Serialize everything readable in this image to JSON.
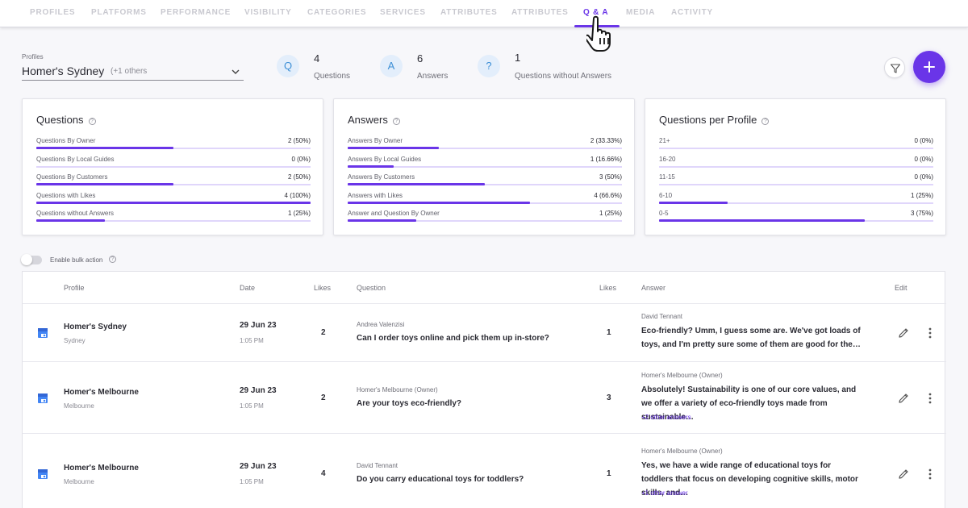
{
  "nav": {
    "tabs": [
      {
        "label": "PROFILES"
      },
      {
        "label": "PLATFORMS"
      },
      {
        "label": "PERFORMANCE"
      },
      {
        "label": "VISIBILITY"
      },
      {
        "label": "CATEGORIES"
      },
      {
        "label": "SERVICES"
      },
      {
        "label": "ATTRIBUTES"
      },
      {
        "label": "ATTRIBUTES"
      },
      {
        "label": "Q & A"
      },
      {
        "label": "MEDIA"
      },
      {
        "label": "ACTIVITY"
      }
    ],
    "active": "Q & A"
  },
  "profiles": {
    "label": "Profiles",
    "selected": "Homer's Sydney",
    "others": "(+1 others"
  },
  "stats": [
    {
      "icon": "Q",
      "value": "4",
      "label": "Questions"
    },
    {
      "icon": "A",
      "value": "6",
      "label": "Answers"
    },
    {
      "icon": "?",
      "value": "1",
      "label": "Questions without Answers"
    }
  ],
  "cards": {
    "questions": {
      "title": "Questions",
      "metrics": [
        {
          "label": "Questions By Owner",
          "value": "2 (50%)",
          "fraction": 0.5
        },
        {
          "label": "Questions By Local Guides",
          "value": "0 (0%)",
          "fraction": 0
        },
        {
          "label": "Questions By Customers",
          "value": "2 (50%)",
          "fraction": 0.5
        },
        {
          "label": "Questions with Likes",
          "value": "4 (100%)",
          "fraction": 1.0
        },
        {
          "label": "Questions without Answers",
          "value": "1 (25%)",
          "fraction": 0.25
        }
      ]
    },
    "answers": {
      "title": "Answers",
      "metrics": [
        {
          "label": "Answers By Owner",
          "value": "2 (33.33%)",
          "fraction": 0.3333
        },
        {
          "label": "Answers By Local Guides",
          "value": "1 (16.66%)",
          "fraction": 0.1666
        },
        {
          "label": "Answers By Customers",
          "value": "3 (50%)",
          "fraction": 0.5
        },
        {
          "label": "Answers with Likes",
          "value": "4 (66.6%)",
          "fraction": 0.666
        },
        {
          "label": "Answer and Question By Owner",
          "value": "1 (25%)",
          "fraction": 0.25
        }
      ]
    },
    "per_profile": {
      "title": "Questions per Profile",
      "metrics": [
        {
          "label": "21+",
          "value": "0 (0%)",
          "fraction": 0
        },
        {
          "label": "16-20",
          "value": "0 (0%)",
          "fraction": 0
        },
        {
          "label": "11-15",
          "value": "0 (0%)",
          "fraction": 0
        },
        {
          "label": "6-10",
          "value": "1 (25%)",
          "fraction": 0.25
        },
        {
          "label": "0-5",
          "value": "3 (75%)",
          "fraction": 0.75
        }
      ]
    }
  },
  "bulk": {
    "label": "Enable bulk action"
  },
  "table": {
    "headers": {
      "profile": "Profile",
      "date": "Date",
      "qlikes": "Likes",
      "question": "Question",
      "alikes": "Likes",
      "answer": "Answer",
      "edit": "Edit"
    },
    "rows": [
      {
        "profile": "Homer's Sydney",
        "city": "Sydney",
        "date": "29 Jun 23",
        "time": "1:05 PM",
        "q_likes": "2",
        "q_author": "Andrea Valenzisi",
        "question": "Can I order toys online and pick them up in-store?",
        "a_likes": "1",
        "a_author": "David Tennant",
        "answer": "Eco-friendly? Umm, I guess some are. We've got loads of toys, and I'm pretty sure some of them are good for the…",
        "more": ""
      },
      {
        "profile": "Homer's Melbourne",
        "city": "Melbourne",
        "date": "29 Jun 23",
        "time": "1:05 PM",
        "q_likes": "2",
        "q_author": "Homer's Melbourne (Owner)",
        "question": "Are your toys eco-friendly?",
        "a_likes": "3",
        "a_author": "Homer's Melbourne (Owner)",
        "answer": "Absolutely! Sustainability is one of our core values, and we offer a variety of eco-friendly toys made from sustainable…",
        "more": "+2 other answers"
      },
      {
        "profile": "Homer's Melbourne",
        "city": "Melbourne",
        "date": "29 Jun 23",
        "time": "1:05 PM",
        "q_likes": "4",
        "q_author": "David Tennant",
        "question": "Do you carry educational toys for toddlers?",
        "a_likes": "1",
        "a_author": "Homer's Melbourne (Owner)",
        "answer": "Yes, we have a wide range of educational toys for toddlers that focus on developing cognitive skills, motor skills, and…",
        "more": "+1 other answer"
      }
    ]
  },
  "colors": {
    "accent": "#6a35e8",
    "icon_bg": "#e3eefb",
    "icon_fg": "#3d8fd6"
  }
}
